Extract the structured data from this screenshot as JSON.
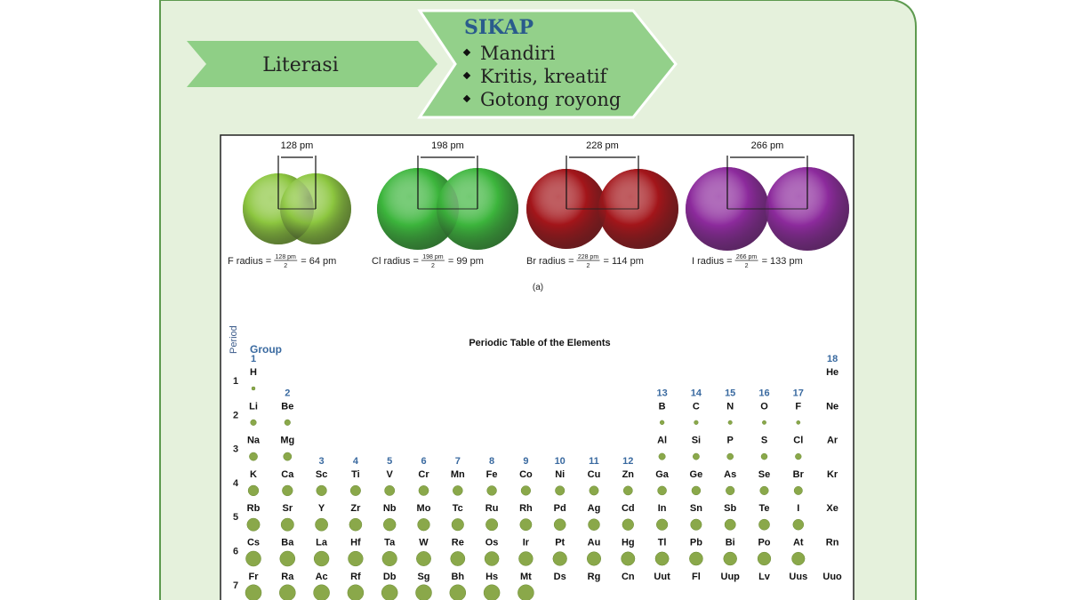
{
  "banner": {
    "left": "Literasi",
    "title": "SIKAP",
    "items": [
      "Mandiri",
      "Kritis, kreatif",
      "Gotong royong"
    ]
  },
  "molecules": [
    {
      "distance": "128 pm",
      "label": "F radius =",
      "numerator": "128 pm",
      "denominator": "2",
      "result": "= 64 pm",
      "color": "#8cc63f"
    },
    {
      "distance": "198 pm",
      "label": "Cl radius =",
      "numerator": "198 pm",
      "denominator": "2",
      "result": "= 99 pm",
      "color": "#3cb53c"
    },
    {
      "distance": "228 pm",
      "label": "Br radius =",
      "numerator": "228 pm",
      "denominator": "2",
      "result": "= 114 pm",
      "color": "#a3151a"
    },
    {
      "distance": "266 pm",
      "label": "I radius =",
      "numerator": "266 pm",
      "denominator": "2",
      "result": "= 133 pm",
      "color": "#8c2a9c"
    }
  ],
  "caption": "(a)",
  "periodic_table": {
    "title": "Periodic Table of the Elements",
    "period_label": "Period",
    "group_label": "Group",
    "periods": [
      "1",
      "2",
      "3",
      "4",
      "5",
      "6",
      "7"
    ],
    "groups": [
      "1",
      "2",
      "3",
      "4",
      "5",
      "6",
      "7",
      "8",
      "9",
      "10",
      "11",
      "12",
      "13",
      "14",
      "15",
      "16",
      "17",
      "18"
    ],
    "rows": [
      [
        "H",
        null,
        null,
        null,
        null,
        null,
        null,
        null,
        null,
        null,
        null,
        null,
        null,
        null,
        null,
        null,
        null,
        "He"
      ],
      [
        "Li",
        "Be",
        null,
        null,
        null,
        null,
        null,
        null,
        null,
        null,
        null,
        null,
        "B",
        "C",
        "N",
        "O",
        "F",
        "Ne"
      ],
      [
        "Na",
        "Mg",
        null,
        null,
        null,
        null,
        null,
        null,
        null,
        null,
        null,
        null,
        "Al",
        "Si",
        "P",
        "S",
        "Cl",
        "Ar"
      ],
      [
        "K",
        "Ca",
        "Sc",
        "Ti",
        "V",
        "Cr",
        "Mn",
        "Fe",
        "Co",
        "Ni",
        "Cu",
        "Zn",
        "Ga",
        "Ge",
        "As",
        "Se",
        "Br",
        "Kr"
      ],
      [
        "Rb",
        "Sr",
        "Y",
        "Zr",
        "Nb",
        "Mo",
        "Tc",
        "Ru",
        "Rh",
        "Pd",
        "Ag",
        "Cd",
        "In",
        "Sn",
        "Sb",
        "Te",
        "I",
        "Xe"
      ],
      [
        "Cs",
        "Ba",
        "La",
        "Hf",
        "Ta",
        "W",
        "Re",
        "Os",
        "Ir",
        "Pt",
        "Au",
        "Hg",
        "Tl",
        "Pb",
        "Bi",
        "Po",
        "At",
        "Rn"
      ],
      [
        "Fr",
        "Ra",
        "Ac",
        "Rf",
        "Db",
        "Sg",
        "Bh",
        "Hs",
        "Mt",
        "Ds",
        "Rg",
        "Cn",
        "Uut",
        "Fl",
        "Uup",
        "Lv",
        "Uus",
        "Uuo"
      ]
    ]
  }
}
